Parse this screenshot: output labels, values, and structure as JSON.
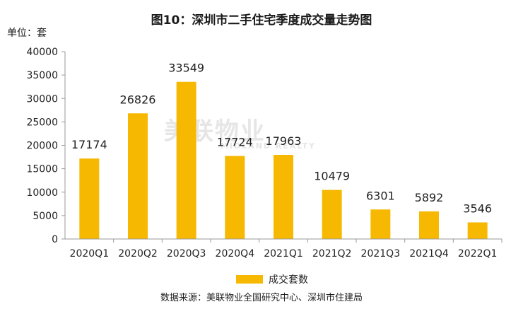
{
  "title": "图10：深圳市二手住宅季度成交量走势图",
  "unit_label": "单位：套",
  "source": "数据来源：美联物业全国研究中心、深圳市住建局",
  "watermark": {
    "main": "美联物业",
    "sub": "MIDLAND REALTY"
  },
  "colors": {
    "bar": "#f6b800",
    "axis": "#9a9a9a",
    "text": "#222222"
  },
  "chart_data": {
    "type": "bar",
    "categories": [
      "2020Q1",
      "2020Q2",
      "2020Q3",
      "2020Q4",
      "2021Q1",
      "2021Q2",
      "2021Q3",
      "2021Q4",
      "2022Q1"
    ],
    "series": [
      {
        "name": "成交套数",
        "values": [
          17174,
          26826,
          33549,
          17724,
          17963,
          10479,
          6301,
          5892,
          3546
        ]
      }
    ],
    "ylim": [
      0,
      40000
    ],
    "yticks": [
      0,
      5000,
      10000,
      15000,
      20000,
      25000,
      30000,
      35000,
      40000
    ],
    "ytick_labels": [
      "0",
      "5000",
      "10000",
      "15000",
      "20000",
      "25000",
      "30000",
      "35000",
      "40000"
    ],
    "data_labels": [
      "17174",
      "26826",
      "33549",
      "17724",
      "17963",
      "10479",
      "6301",
      "5892",
      "3546"
    ],
    "grid": false,
    "legend": "bottom-center"
  }
}
